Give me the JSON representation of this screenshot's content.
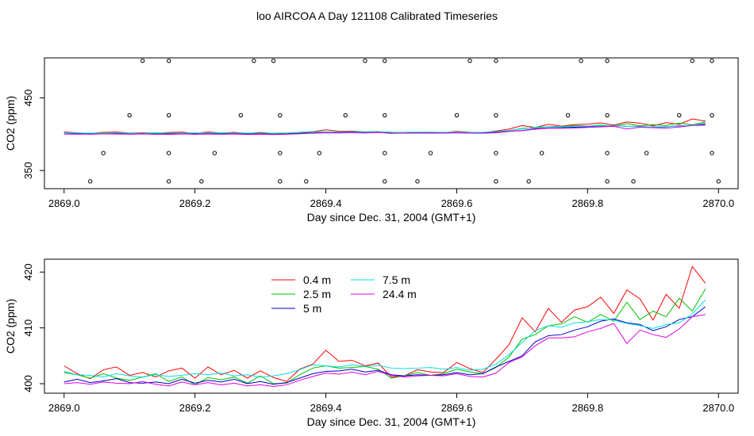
{
  "title": "loo AIRCOA A  Day 121108  Calibrated Timeseries",
  "chart_data": [
    {
      "type": "scatter",
      "xlabel": "Day since Dec. 31, 2004 (GMT+1)",
      "ylabel": "CO2 (ppm)",
      "xlim": [
        2868.97,
        2870.03
      ],
      "ylim": [
        325,
        505
      ],
      "xticks": [
        "2869.0",
        "2869.2",
        "2869.4",
        "2869.6",
        "2869.8",
        "2870.0"
      ],
      "yticks": [
        "350",
        "450"
      ],
      "ytick_values": [
        350,
        450
      ],
      "grid": false,
      "calibration_points": [
        {
          "x": 2869.04,
          "y": 335
        },
        {
          "x": 2869.06,
          "y": 374
        },
        {
          "x": 2869.1,
          "y": 426
        },
        {
          "x": 2869.12,
          "y": 501
        },
        {
          "x": 2869.16,
          "y": 501
        },
        {
          "x": 2869.16,
          "y": 426
        },
        {
          "x": 2869.16,
          "y": 374
        },
        {
          "x": 2869.16,
          "y": 335
        },
        {
          "x": 2869.21,
          "y": 335
        },
        {
          "x": 2869.23,
          "y": 374
        },
        {
          "x": 2869.27,
          "y": 426
        },
        {
          "x": 2869.29,
          "y": 501
        },
        {
          "x": 2869.32,
          "y": 501
        },
        {
          "x": 2869.33,
          "y": 426
        },
        {
          "x": 2869.33,
          "y": 374
        },
        {
          "x": 2869.33,
          "y": 335
        },
        {
          "x": 2869.37,
          "y": 335
        },
        {
          "x": 2869.39,
          "y": 374
        },
        {
          "x": 2869.43,
          "y": 426
        },
        {
          "x": 2869.46,
          "y": 501
        },
        {
          "x": 2869.49,
          "y": 501
        },
        {
          "x": 2869.49,
          "y": 426
        },
        {
          "x": 2869.49,
          "y": 374
        },
        {
          "x": 2869.49,
          "y": 335
        },
        {
          "x": 2869.54,
          "y": 335
        },
        {
          "x": 2869.56,
          "y": 374
        },
        {
          "x": 2869.6,
          "y": 426
        },
        {
          "x": 2869.62,
          "y": 501
        },
        {
          "x": 2869.66,
          "y": 501
        },
        {
          "x": 2869.66,
          "y": 426
        },
        {
          "x": 2869.66,
          "y": 374
        },
        {
          "x": 2869.66,
          "y": 335
        },
        {
          "x": 2869.71,
          "y": 335
        },
        {
          "x": 2869.73,
          "y": 374
        },
        {
          "x": 2869.77,
          "y": 426
        },
        {
          "x": 2869.79,
          "y": 501
        },
        {
          "x": 2869.83,
          "y": 501
        },
        {
          "x": 2869.83,
          "y": 426
        },
        {
          "x": 2869.83,
          "y": 374
        },
        {
          "x": 2869.83,
          "y": 335
        },
        {
          "x": 2869.87,
          "y": 335
        },
        {
          "x": 2869.89,
          "y": 374
        },
        {
          "x": 2869.94,
          "y": 426
        },
        {
          "x": 2869.96,
          "y": 501
        },
        {
          "x": 2869.99,
          "y": 501
        },
        {
          "x": 2869.99,
          "y": 426
        },
        {
          "x": 2869.99,
          "y": 374
        },
        {
          "x": 2870.0,
          "y": 335
        }
      ]
    },
    {
      "type": "line",
      "xlabel": "Day since Dec. 31, 2004 (GMT+1)",
      "ylabel": "CO2 (ppm)",
      "xlim": [
        2868.97,
        2870.03
      ],
      "ylim": [
        398.3,
        422.3
      ],
      "xticks": [
        "2869.0",
        "2869.2",
        "2869.4",
        "2869.6",
        "2869.8",
        "2870.0"
      ],
      "yticks": [
        "400",
        "410",
        "420"
      ],
      "ytick_values": [
        400,
        410,
        420
      ],
      "grid": false,
      "legend": "top-center",
      "x": [
        2869.0,
        2869.02,
        2869.04,
        2869.06,
        2869.08,
        2869.1,
        2869.12,
        2869.14,
        2869.16,
        2869.18,
        2869.2,
        2869.22,
        2869.24,
        2869.26,
        2869.28,
        2869.3,
        2869.32,
        2869.34,
        2869.36,
        2869.38,
        2869.4,
        2869.42,
        2869.44,
        2869.46,
        2869.48,
        2869.5,
        2869.52,
        2869.54,
        2869.56,
        2869.58,
        2869.6,
        2869.62,
        2869.64,
        2869.66,
        2869.68,
        2869.7,
        2869.72,
        2869.74,
        2869.76,
        2869.78,
        2869.8,
        2869.82,
        2869.84,
        2869.86,
        2869.88,
        2869.9,
        2869.92,
        2869.94,
        2869.96,
        2869.98
      ],
      "series": [
        {
          "name": "0.4 m",
          "color": "#ff0000",
          "values": [
            403.2,
            401.8,
            400.9,
            402.5,
            403.0,
            401.5,
            402.0,
            401.2,
            402.3,
            402.8,
            401.0,
            403.0,
            401.6,
            402.4,
            401.0,
            402.3,
            401.1,
            400.4,
            402.6,
            403.5,
            406.0,
            404.0,
            404.2,
            403.2,
            403.7,
            401.2,
            401.4,
            402.5,
            402.1,
            402.0,
            403.8,
            402.7,
            402.0,
            404.4,
            407.0,
            411.8,
            409.3,
            413.5,
            411.0,
            413.2,
            413.8,
            415.5,
            412.6,
            416.8,
            415.2,
            411.4,
            416.0,
            413.5,
            421.0,
            418.0
          ]
        },
        {
          "name": "2.5 m",
          "color": "#00c000",
          "values": [
            402.0,
            401.6,
            401.0,
            401.8,
            401.0,
            400.6,
            401.2,
            401.8,
            400.4,
            401.2,
            399.8,
            401.1,
            400.7,
            401.2,
            400.1,
            401.4,
            400.0,
            400.1,
            401.6,
            402.8,
            403.2,
            402.8,
            402.9,
            403.1,
            402.6,
            401.0,
            401.4,
            402.0,
            401.5,
            401.8,
            402.6,
            402.1,
            401.8,
            402.9,
            404.8,
            408.0,
            408.8,
            410.4,
            410.7,
            412.0,
            411.0,
            412.4,
            411.2,
            414.6,
            411.5,
            413.0,
            412.0,
            415.3,
            413.0,
            417.0
          ]
        },
        {
          "name": "5 m",
          "color": "#0000c0",
          "values": [
            400.3,
            400.8,
            400.2,
            400.5,
            400.9,
            400.2,
            400.1,
            400.3,
            400.0,
            400.8,
            400.1,
            400.6,
            400.3,
            400.8,
            400.0,
            400.4,
            399.9,
            400.2,
            401.0,
            401.8,
            402.2,
            402.3,
            402.6,
            402.1,
            402.4,
            401.6,
            401.4,
            401.6,
            401.5,
            401.6,
            402.0,
            401.6,
            401.8,
            403.0,
            404.0,
            405.0,
            407.5,
            408.6,
            408.8,
            409.6,
            410.2,
            411.2,
            411.6,
            410.9,
            410.6,
            409.5,
            410.2,
            411.5,
            412.0,
            413.8
          ]
        },
        {
          "name": "7.5 m",
          "color": "#00e0e0",
          "values": [
            402.2,
            401.6,
            401.5,
            401.2,
            401.8,
            401.4,
            401.2,
            401.6,
            401.3,
            401.5,
            401.8,
            401.6,
            401.9,
            401.4,
            401.6,
            401.2,
            401.4,
            401.8,
            402.5,
            403.4,
            403.2,
            403.0,
            403.4,
            403.1,
            403.3,
            402.8,
            402.7,
            402.8,
            402.9,
            402.6,
            402.9,
            402.4,
            402.6,
            403.5,
            405.2,
            407.4,
            409.5,
            410.4,
            410.1,
            410.9,
            411.1,
            411.5,
            411.4,
            410.8,
            410.4,
            409.9,
            410.6,
            410.9,
            412.5,
            415.0
          ]
        },
        {
          "name": "24.4 m",
          "color": "#e000e0",
          "values": [
            400.0,
            400.2,
            399.9,
            400.3,
            400.1,
            400.0,
            400.4,
            399.9,
            399.6,
            400.3,
            399.8,
            400.2,
            399.8,
            400.1,
            399.6,
            399.8,
            399.5,
            399.8,
            400.6,
            401.3,
            401.9,
            401.7,
            402.1,
            401.6,
            402.2,
            401.5,
            401.2,
            401.4,
            401.5,
            401.4,
            401.8,
            401.3,
            401.2,
            401.9,
            403.8,
            404.8,
            406.8,
            408.2,
            408.2,
            408.4,
            409.3,
            409.9,
            410.8,
            407.2,
            409.6,
            408.8,
            408.3,
            409.8,
            412.0,
            412.4
          ]
        }
      ]
    }
  ]
}
